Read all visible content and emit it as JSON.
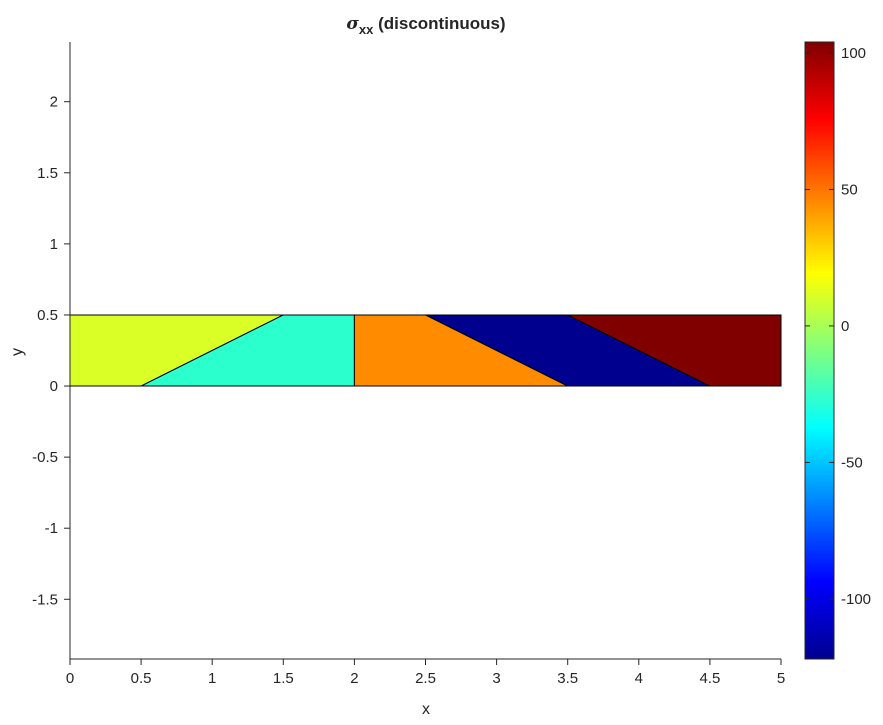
{
  "chart_data": {
    "type": "patch",
    "title": {
      "symbol": "σ",
      "subscript": "xx",
      "text": " (discontinuous)"
    },
    "xlabel": "x",
    "ylabel": "y",
    "xlim": [
      0,
      5
    ],
    "ylim": [
      -1.92,
      2.42
    ],
    "xticks": [
      0,
      0.5,
      1,
      1.5,
      2,
      2.5,
      3,
      3.5,
      4,
      4.5,
      5
    ],
    "xtick_labels": [
      "0",
      "0.5",
      "1",
      "1.5",
      "2",
      "2.5",
      "3",
      "3.5",
      "4",
      "4.5",
      "5"
    ],
    "yticks": [
      -1.5,
      -1,
      -0.5,
      0,
      0.5,
      1,
      1.5,
      2
    ],
    "ytick_labels": [
      "-1.5",
      "-1",
      "-0.5",
      "0",
      "0.5",
      "1",
      "1.5",
      "2"
    ],
    "grid": false,
    "colormap": "jet",
    "colorbar": {
      "clim": [
        -122,
        104
      ],
      "ticks": [
        -100,
        -50,
        0,
        50,
        100
      ],
      "tick_labels": [
        "-100",
        "-50",
        "0",
        "50",
        "100"
      ]
    },
    "elements": [
      {
        "vertices": [
          [
            0,
            0
          ],
          [
            0.5,
            0
          ],
          [
            1.5,
            0.5
          ],
          [
            0,
            0.5
          ]
        ],
        "value": 10,
        "color": "#d9ff26"
      },
      {
        "vertices": [
          [
            0.5,
            0
          ],
          [
            2,
            0
          ],
          [
            2,
            0.5
          ],
          [
            1.5,
            0.5
          ]
        ],
        "value": -32,
        "color": "#2bffcd"
      },
      {
        "vertices": [
          [
            2,
            0
          ],
          [
            3.5,
            0
          ],
          [
            2.5,
            0.5
          ],
          [
            2,
            0.5
          ]
        ],
        "value": 50,
        "color": "#ff8c00"
      },
      {
        "vertices": [
          [
            3.5,
            0
          ],
          [
            4.5,
            0
          ],
          [
            3.5,
            0.5
          ],
          [
            2.5,
            0.5
          ]
        ],
        "value": -119,
        "color": "#00008f"
      },
      {
        "vertices": [
          [
            4.5,
            0
          ],
          [
            5,
            0
          ],
          [
            5,
            0.5
          ],
          [
            3.5,
            0.5
          ]
        ],
        "value": 104,
        "color": "#800000"
      }
    ]
  }
}
